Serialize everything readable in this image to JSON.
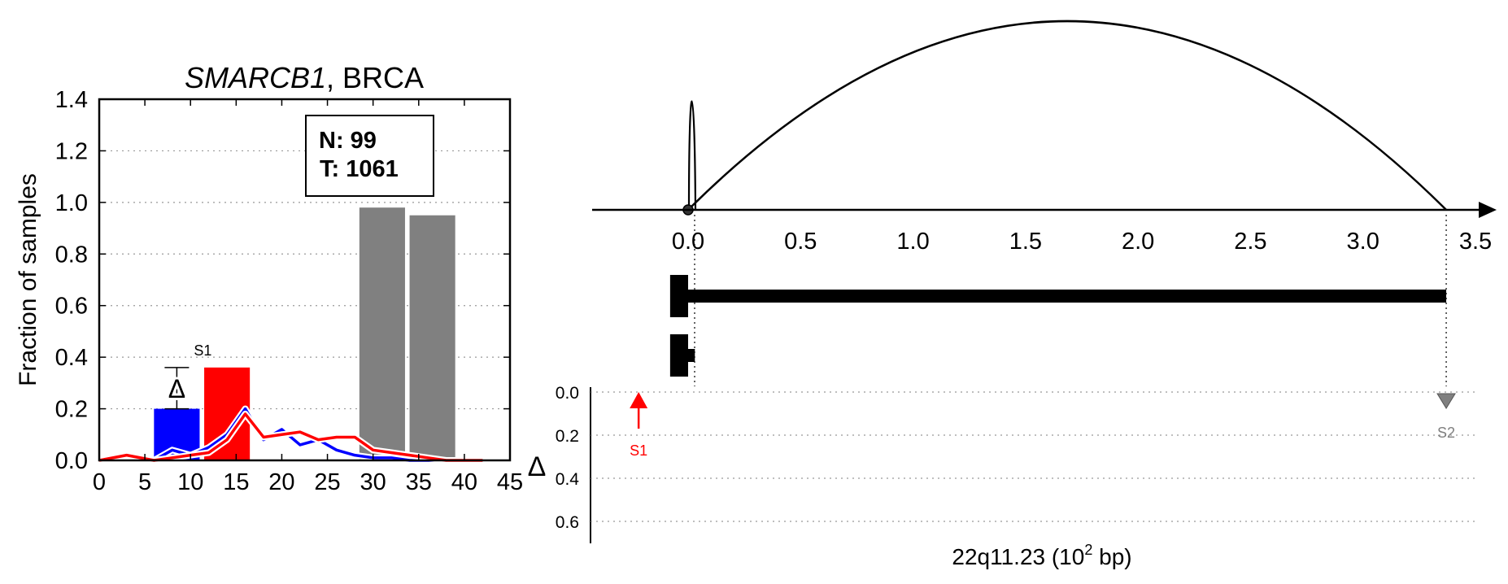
{
  "chart_data": [
    {
      "type": "bar",
      "title_italic": "SMARCB1",
      "title_rest": ", BRCA",
      "ylabel": "Fraction of samples",
      "xlim": [
        0,
        45
      ],
      "ylim": [
        0,
        1.4
      ],
      "xticks": [
        "0",
        "5",
        "10",
        "15",
        "20",
        "25",
        "30",
        "35",
        "40",
        "45"
      ],
      "yticks": [
        "0.0",
        "0.2",
        "0.4",
        "0.6",
        "0.8",
        "1.0",
        "1.2",
        "1.4"
      ],
      "grid": true,
      "legend_box": {
        "line1": "N: 99",
        "line2": "T: 1061",
        "placement": "top-right"
      },
      "bars": [
        {
          "x0": 6,
          "x1": 11,
          "value": 0.2,
          "color": "#0000ff"
        },
        {
          "x0": 11.5,
          "x1": 16.5,
          "value": 0.36,
          "color": "#ff0000"
        },
        {
          "x0": 28.5,
          "x1": 33.5,
          "value": 0.98,
          "color": "#808080"
        },
        {
          "x0": 34,
          "x1": 39,
          "value": 0.95,
          "color": "#808080"
        }
      ],
      "delta_marker": {
        "x": 8.5,
        "y_low": 0.2,
        "y_high": 0.36,
        "symbol": "Δ",
        "label": "S1"
      },
      "series": [
        {
          "color": "#0000ff",
          "x": [
            6,
            8,
            10,
            12,
            14,
            16,
            18,
            20,
            22,
            24,
            26,
            28,
            30,
            32,
            34,
            36,
            38,
            40,
            42
          ],
          "values": [
            0.0,
            0.04,
            0.02,
            0.05,
            0.1,
            0.2,
            0.08,
            0.12,
            0.06,
            0.08,
            0.04,
            0.02,
            0.01,
            0.01,
            0.0,
            0.0,
            0.0,
            0.0,
            0.0
          ]
        },
        {
          "color": "#ff0000",
          "x": [
            0,
            3,
            6,
            8,
            10,
            12,
            14,
            16,
            18,
            20,
            22,
            24,
            26,
            28,
            30,
            32,
            34,
            36,
            38,
            40,
            42
          ],
          "values": [
            0.0,
            0.02,
            0.0,
            0.01,
            0.02,
            0.03,
            0.08,
            0.18,
            0.09,
            0.1,
            0.11,
            0.08,
            0.09,
            0.09,
            0.04,
            0.03,
            0.02,
            0.01,
            0.0,
            0.0,
            0.0
          ]
        }
      ]
    },
    {
      "type": "line",
      "xlabel": "22q11.23 (10",
      "xlabel_sup": "2",
      "xlabel_tail": " bp)",
      "xlim": [
        0,
        3.5
      ],
      "xticks": [
        "0.0",
        "0.5",
        "1.0",
        "1.5",
        "2.0",
        "2.5",
        "3.0",
        "3.5"
      ],
      "arcs": [
        {
          "from": 0.0,
          "to": 0.05,
          "height": "small"
        },
        {
          "from": 0.0,
          "to": 3.37,
          "height": "large"
        }
      ],
      "transcripts": [
        {
          "start": -0.08,
          "end": 3.37,
          "exon_end": 0.0
        },
        {
          "start": -0.08,
          "end": 0.03,
          "exon_end": 0.0
        }
      ],
      "delta_axis": {
        "symbol": "Δ",
        "ylim": [
          0,
          0.7
        ],
        "yticks": [
          "0.0",
          "0.2",
          "0.4",
          "0.6"
        ]
      },
      "markers": [
        {
          "label": "S1",
          "x": -0.22,
          "delta": 0.0,
          "direction": "up",
          "color": "#ff0000"
        },
        {
          "label": "S2",
          "x": 3.37,
          "delta": 0.0,
          "direction": "down",
          "color": "#808080"
        }
      ]
    }
  ]
}
